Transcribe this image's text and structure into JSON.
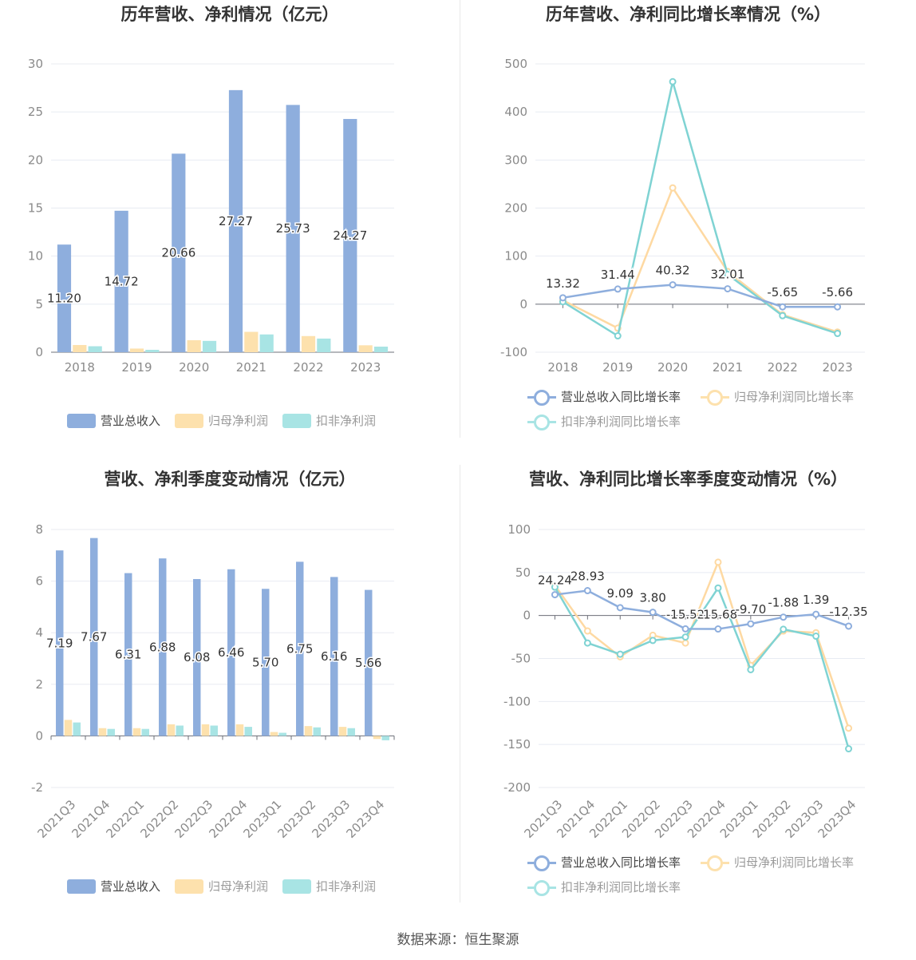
{
  "colors": {
    "revenue": "#8eaedd",
    "profit": "#fde1ad",
    "deducted": "#a8e4e4",
    "revenue_line": "#8eaedd",
    "profit_line": "#fed9a2",
    "deducted_line": "#7fd3d3"
  },
  "source": "数据来源：恒生聚源",
  "chart_data": [
    {
      "type": "bar",
      "title": "历年营收、净利情况（亿元）",
      "categories": [
        "2018",
        "2019",
        "2020",
        "2021",
        "2022",
        "2023"
      ],
      "ylim": [
        0,
        30
      ],
      "yticks": [
        0,
        5,
        10,
        15,
        20,
        25,
        30
      ],
      "series": [
        {
          "name": "营业总收入",
          "values": [
            11.2,
            14.72,
            20.66,
            27.27,
            25.73,
            24.27
          ],
          "labels": [
            "11.20",
            "14.72",
            "20.66",
            "27.27",
            "25.73",
            "24.27"
          ]
        },
        {
          "name": "归母净利润",
          "values": [
            0.75,
            0.38,
            1.25,
            2.12,
            1.68,
            0.72
          ]
        },
        {
          "name": "扣非净利润",
          "values": [
            0.62,
            0.25,
            1.18,
            1.85,
            1.42,
            0.58
          ]
        }
      ],
      "legend": "bottom"
    },
    {
      "type": "line",
      "title": "历年营收、净利同比增长率情况（%）",
      "categories": [
        "2018",
        "2019",
        "2020",
        "2021",
        "2022",
        "2023"
      ],
      "ylim": [
        -100,
        500
      ],
      "yticks": [
        -100,
        0,
        100,
        200,
        300,
        400,
        500
      ],
      "series": [
        {
          "name": "营业总收入同比增长率",
          "values": [
            13.32,
            31.44,
            40.32,
            32.01,
            -5.65,
            -5.66
          ],
          "labels": [
            "13.32",
            "31.44",
            "40.32",
            "32.01",
            "-5.65",
            "-5.66"
          ]
        },
        {
          "name": "归母净利润同比增长率",
          "values": [
            8,
            -50,
            242,
            68,
            -22,
            -58
          ]
        },
        {
          "name": "扣非净利润同比增长率",
          "values": [
            5,
            -66,
            463,
            62,
            -24,
            -61
          ]
        }
      ],
      "legend": "bottom"
    },
    {
      "type": "bar",
      "title": "营收、净利季度变动情况（亿元）",
      "categories": [
        "2021Q3",
        "2021Q4",
        "2022Q1",
        "2022Q2",
        "2022Q3",
        "2022Q4",
        "2023Q1",
        "2023Q2",
        "2023Q3",
        "2023Q4"
      ],
      "ylim": [
        -2,
        8
      ],
      "yticks": [
        -2,
        0,
        2,
        4,
        6,
        8
      ],
      "series": [
        {
          "name": "营业总收入",
          "values": [
            7.19,
            7.67,
            6.31,
            6.88,
            6.08,
            6.46,
            5.7,
            6.75,
            6.16,
            5.66
          ],
          "labels": [
            "7.19",
            "7.67",
            "6.31",
            "6.88",
            "6.08",
            "6.46",
            "5.70",
            "6.75",
            "6.16",
            "5.66"
          ]
        },
        {
          "name": "归母净利润",
          "values": [
            0.62,
            0.3,
            0.3,
            0.45,
            0.45,
            0.45,
            0.15,
            0.38,
            0.35,
            -0.12
          ]
        },
        {
          "name": "扣非净利润",
          "values": [
            0.52,
            0.27,
            0.27,
            0.4,
            0.4,
            0.35,
            0.12,
            0.33,
            0.3,
            -0.17
          ]
        }
      ],
      "legend": "bottom"
    },
    {
      "type": "line",
      "title": "营收、净利同比增长率季度变动情况（%）",
      "categories": [
        "2021Q3",
        "2021Q4",
        "2022Q1",
        "2022Q2",
        "2022Q3",
        "2022Q4",
        "2023Q1",
        "2023Q2",
        "2023Q3",
        "2023Q4"
      ],
      "ylim": [
        -200,
        100
      ],
      "yticks": [
        -200,
        -150,
        -100,
        -50,
        0,
        50,
        100
      ],
      "series": [
        {
          "name": "营业总收入同比增长率",
          "values": [
            24.24,
            28.93,
            9.09,
            3.8,
            -15.52,
            -15.68,
            -9.7,
            -1.88,
            1.39,
            -12.35
          ],
          "labels": [
            "24.24",
            "28.93",
            "9.09",
            "3.80",
            "-15.52",
            "-15.68",
            "-9.70",
            "-1.88",
            "1.39",
            "-12.35"
          ]
        },
        {
          "name": "归母净利润同比增长率",
          "values": [
            35,
            -18,
            -48,
            -23,
            -32,
            62,
            -58,
            -18,
            -20,
            -131
          ]
        },
        {
          "name": "扣非净利润同比增长率",
          "values": [
            33,
            -32,
            -45,
            -29,
            -25,
            32,
            -63,
            -16,
            -24,
            -155
          ]
        }
      ],
      "legend": "bottom"
    }
  ]
}
